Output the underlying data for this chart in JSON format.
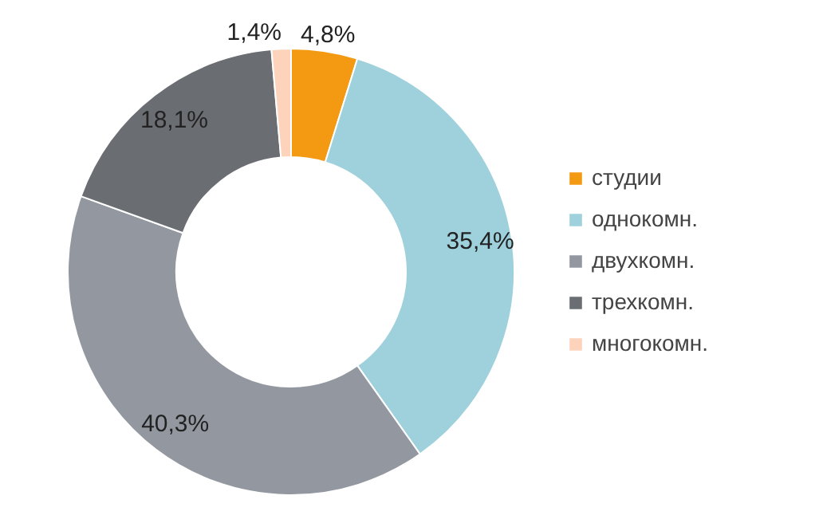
{
  "chart_data": {
    "type": "donut",
    "categories": [
      "студии",
      "однокомн.",
      "двухкомн.",
      "трехкомн.",
      "многокомн."
    ],
    "values": [
      4.8,
      35.4,
      40.3,
      18.1,
      1.4
    ],
    "colors": [
      "#f39a12",
      "#9ed1dc",
      "#9297a0",
      "#6a6d72",
      "#fdd3bc"
    ],
    "value_labels": [
      "4,8%",
      "35,4%",
      "40,3%",
      "18,1%",
      "1,4%"
    ],
    "legend": "right"
  }
}
